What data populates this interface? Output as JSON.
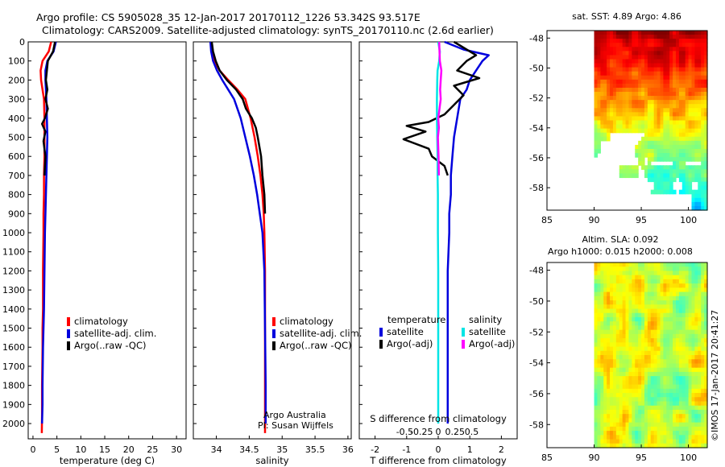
{
  "header": {
    "line1": "Argo profile: CS 5905028_35 12-Jan-2017 20170112_1226 53.342S 93.517E",
    "line2": "Climatology: CARS2009. Satellite-adjusted climatology: synTS_20170110.nc (2.6d earlier)"
  },
  "colors": {
    "climatology": "#ff0000",
    "satellite": "#0000dd",
    "argo": "#000000",
    "sal_satellite": "#00e5e5",
    "sal_argo": "#ff00ff"
  },
  "chart_data": [
    {
      "type": "line",
      "panel": "temperature",
      "xlabel": "temperature (deg C)",
      "xlim": [
        -1,
        32
      ],
      "xticks": [
        0,
        5,
        10,
        15,
        20,
        25,
        30
      ],
      "ylim": [
        0,
        2080
      ],
      "yticks": [
        0,
        100,
        200,
        300,
        400,
        500,
        600,
        700,
        800,
        900,
        1000,
        1100,
        1200,
        1300,
        1400,
        1500,
        1600,
        1700,
        1800,
        1900,
        2000
      ],
      "legend": [
        "climatology",
        "satellite-adj. clim.",
        "Argo(..raw -QC)"
      ],
      "series": [
        {
          "name": "climatology",
          "color_key": "climatology",
          "x": [
            3.8,
            3.3,
            2.0,
            1.6,
            1.7,
            2.0,
            2.3,
            2.4,
            2.4,
            2.4,
            2.3,
            2.3,
            2.2,
            2.2,
            2.1,
            2.1,
            2.0,
            2.0,
            1.9,
            1.9,
            1.85
          ],
          "y": [
            0,
            50,
            100,
            150,
            200,
            250,
            300,
            400,
            500,
            600,
            700,
            800,
            900,
            1000,
            1200,
            1400,
            1500,
            1600,
            1800,
            1950,
            2050
          ]
        },
        {
          "name": "satellite-adj. clim.",
          "color_key": "satellite",
          "x": [
            4.8,
            4.3,
            3.0,
            2.6,
            2.6,
            2.8,
            2.9,
            3.0,
            2.9,
            2.8,
            2.7,
            2.6,
            2.5,
            2.4,
            2.3,
            2.2,
            2.1,
            2.0,
            2.0,
            1.9
          ],
          "y": [
            0,
            50,
            100,
            150,
            200,
            300,
            400,
            500,
            600,
            700,
            800,
            900,
            1000,
            1200,
            1400,
            1500,
            1600,
            1800,
            1900,
            2000
          ]
        },
        {
          "name": "Argo(..raw -QC)",
          "color_key": "argo",
          "x": [
            4.6,
            4.2,
            3.1,
            2.9,
            2.7,
            3.0,
            2.6,
            3.1,
            2.5,
            1.9,
            2.6,
            2.2,
            2.6,
            2.5,
            2.4
          ],
          "y": [
            0,
            50,
            100,
            150,
            200,
            250,
            300,
            350,
            400,
            430,
            470,
            520,
            600,
            650,
            700
          ]
        }
      ]
    },
    {
      "type": "line",
      "panel": "salinity",
      "xlabel": "salinity",
      "xlim": [
        33.65,
        36.05
      ],
      "xticks": [
        34,
        34.5,
        35,
        35.5,
        36
      ],
      "ylim": [
        0,
        2080
      ],
      "legend": [
        "climatology",
        "satellite-adj. clim.",
        "Argo(..raw -QC)"
      ],
      "annotation": [
        "Argo Australia",
        "PI: Susan Wijffels"
      ],
      "series": [
        {
          "name": "climatology",
          "color_key": "climatology",
          "x": [
            33.92,
            33.93,
            33.97,
            34.05,
            34.18,
            34.32,
            34.44,
            34.52,
            34.58,
            34.63,
            34.67,
            34.7,
            34.72,
            34.73,
            34.74,
            34.74,
            34.74,
            34.74
          ],
          "y": [
            0,
            50,
            100,
            150,
            200,
            250,
            300,
            400,
            500,
            600,
            700,
            800,
            900,
            1000,
            1200,
            1500,
            1800,
            2050
          ]
        },
        {
          "name": "satellite-adj. clim.",
          "color_key": "satellite",
          "x": [
            33.91,
            33.92,
            33.95,
            34.01,
            34.09,
            34.18,
            34.27,
            34.37,
            34.44,
            34.51,
            34.57,
            34.62,
            34.66,
            34.7,
            34.73,
            34.74,
            34.75,
            34.75
          ],
          "y": [
            0,
            50,
            100,
            150,
            200,
            250,
            300,
            400,
            500,
            600,
            700,
            800,
            900,
            1000,
            1200,
            1500,
            1800,
            2000
          ]
        },
        {
          "name": "Argo(..raw -QC)",
          "color_key": "argo",
          "x": [
            33.93,
            33.95,
            33.99,
            34.05,
            34.16,
            34.3,
            34.4,
            34.45,
            34.54,
            34.6,
            34.63,
            34.68,
            34.7,
            34.73,
            34.74
          ],
          "y": [
            0,
            50,
            100,
            150,
            200,
            250,
            300,
            350,
            400,
            450,
            500,
            600,
            700,
            800,
            900
          ]
        }
      ]
    },
    {
      "type": "line",
      "panel": "difference",
      "xlabel": "T difference from climatology",
      "top_label": "S difference from climatology",
      "xlim": [
        -2.5,
        2.5
      ],
      "xticks": [
        -2,
        -1,
        0,
        1,
        2
      ],
      "sticks": [
        -0.5,
        -0.25,
        0,
        0.25,
        0.5
      ],
      "ylim": [
        0,
        2080
      ],
      "legend_titles": [
        "temperature",
        "salinity"
      ],
      "legend_t": [
        "satellite",
        "Argo(-adj)"
      ],
      "legend_s": [
        "satellite",
        "Argo(-adj)"
      ],
      "series": [
        {
          "name": "T satellite",
          "color_key": "satellite",
          "x": [
            0.2,
            0.8,
            1.6,
            1.4,
            1.2,
            1.0,
            0.9,
            0.7,
            0.6,
            0.5,
            0.45,
            0.4,
            0.4,
            0.35,
            0.35,
            0.3,
            0.3,
            0.3,
            0.3,
            0.3,
            0.3
          ],
          "y": [
            0,
            40,
            70,
            100,
            150,
            200,
            250,
            300,
            400,
            500,
            600,
            700,
            800,
            900,
            1000,
            1200,
            1400,
            1600,
            1800,
            1900,
            2000
          ]
        },
        {
          "name": "T Argo(-adj)",
          "color_key": "argo",
          "x": [
            0.5,
            1.2,
            0.9,
            0.6,
            1.3,
            0.5,
            0.8,
            0.5,
            0.2,
            -0.3,
            -1.0,
            -0.4,
            -1.1,
            -0.3,
            -0.2,
            0.2,
            0.3
          ],
          "y": [
            0,
            70,
            100,
            150,
            190,
            230,
            280,
            330,
            380,
            420,
            440,
            470,
            510,
            560,
            600,
            650,
            700
          ]
        },
        {
          "name": "S satellite",
          "color_key": "sal_satellite",
          "x": [
            0.0,
            0.05,
            0.03,
            -0.02,
            -0.03,
            -0.04,
            -0.04,
            -0.03,
            -0.02,
            -0.02,
            -0.01,
            -0.01,
            0.0,
            0.0,
            0.0,
            0.0
          ],
          "y": [
            0,
            50,
            100,
            150,
            200,
            300,
            400,
            500,
            600,
            700,
            800,
            1000,
            1200,
            1500,
            1800,
            2000
          ]
        },
        {
          "name": "S Argo(-adj)",
          "color_key": "sal_argo",
          "x": [
            0.03,
            0.05,
            0.1,
            0.08,
            0.06,
            0.08,
            0.04,
            0.0,
            0.02,
            -0.01,
            0.0,
            0.01,
            0.02
          ],
          "y": [
            0,
            100,
            150,
            200,
            250,
            300,
            350,
            400,
            450,
            500,
            550,
            600,
            700
          ]
        }
      ]
    },
    {
      "type": "heatmap",
      "panel": "sst_map",
      "title": "sat. SST: 4.89  Argo: 4.86",
      "xlim": [
        85,
        102
      ],
      "xticks": [
        85,
        90,
        95,
        100
      ],
      "ylim": [
        -59.5,
        -47.5
      ],
      "yticks": [
        -48,
        -50,
        -52,
        -54,
        -56,
        -58
      ],
      "argo_position": {
        "lon": 93.517,
        "lat": -53.342
      }
    },
    {
      "type": "heatmap",
      "panel": "sla_map",
      "title1": "Altim. SLA: 0.092",
      "title2": "Argo h1000: 0.015  h2000: 0.008",
      "xlim": [
        85,
        102
      ],
      "xticks": [
        85,
        90,
        95,
        100
      ],
      "ylim": [
        -59.5,
        -47.5
      ],
      "yticks": [
        -48,
        -50,
        -52,
        -54,
        -56,
        -58
      ],
      "credit": "©IMOS 17-Jan-2017 20:41:27"
    }
  ]
}
